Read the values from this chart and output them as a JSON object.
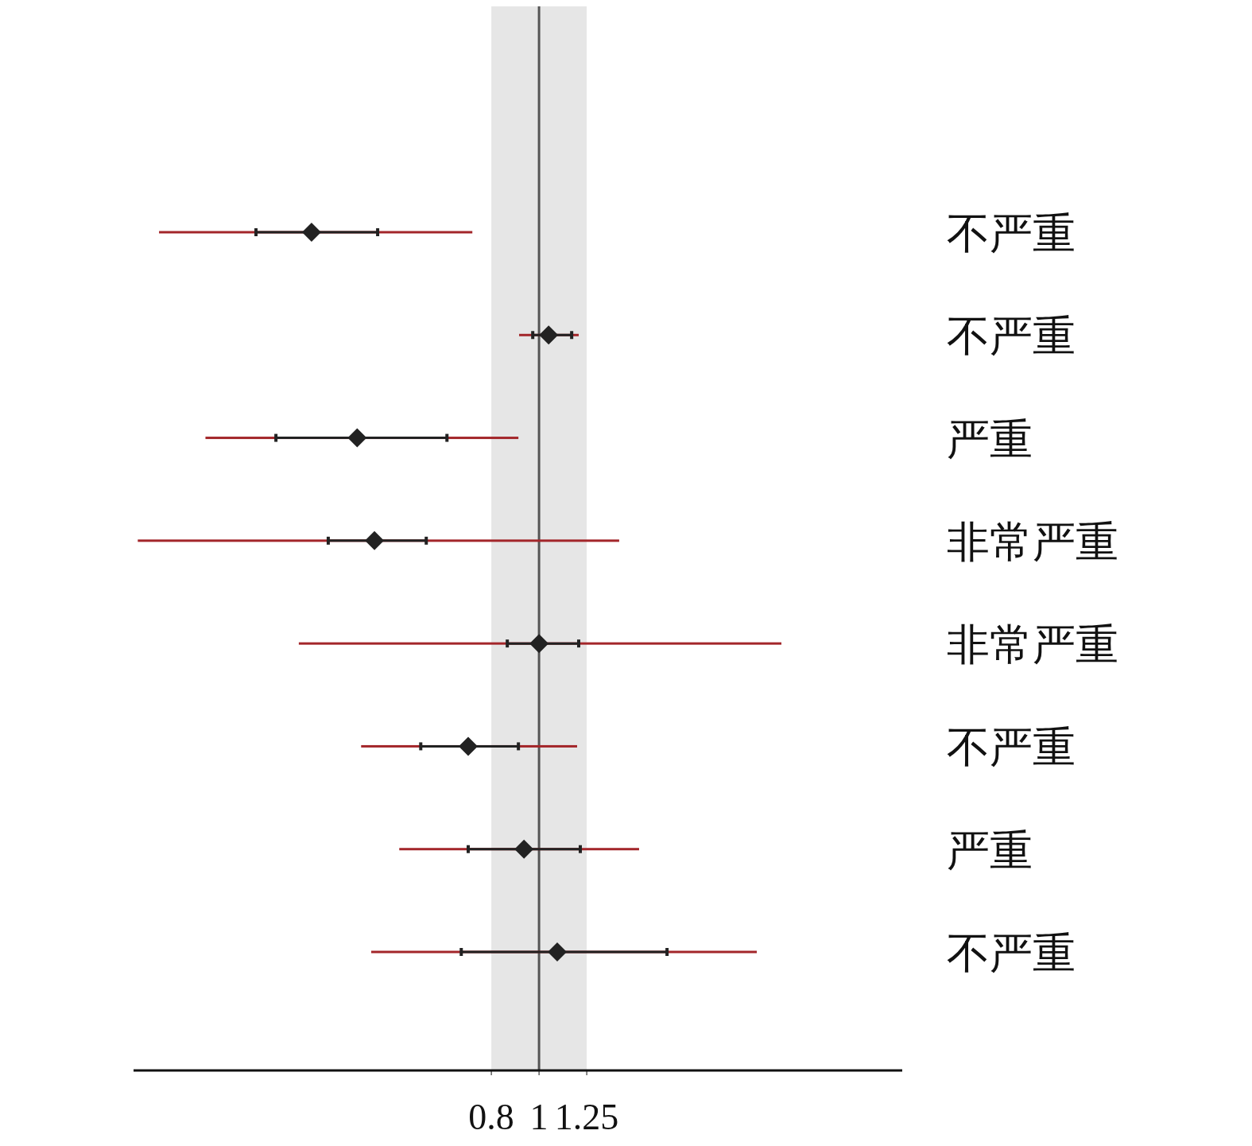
{
  "chart_data": {
    "type": "scatter",
    "orientation": "horizontal",
    "log": "x",
    "categories": [
      "不严重",
      "不严重",
      "严重",
      "非常严重",
      "非常严重",
      "不严重",
      "严重",
      "不严重"
    ],
    "series": [
      {
        "type": "bar",
        "color": "#a3262a",
        "base": [
          0.169,
          0.911,
          0.21,
          0.153,
          0.325,
          0.435,
          0.52,
          0.456
        ],
        "values": [
          0.563,
          0.293,
          0.698,
          1.302,
          2.783,
          0.76,
          1.077,
          2.314
        ]
      },
      {
        "color": "#222222",
        "marker": "diamond",
        "values": [
          0.345,
          1.046,
          0.427,
          0.463,
          1.0,
          0.718,
          0.932,
          1.089
        ],
        "errors": [
          [
            0.266,
            0.47
          ],
          [
            0.971,
            1.165
          ],
          [
            0.292,
            0.65
          ],
          [
            0.373,
            0.59
          ],
          [
            0.862,
            1.204
          ],
          [
            0.575,
            0.908
          ],
          [
            0.718,
            1.213
          ],
          [
            0.695,
            1.82
          ]
        ]
      }
    ],
    "xlim": [
      0.15,
      5.47
    ],
    "xticks": [
      0.8,
      1,
      1.25
    ],
    "ref_lines": [
      {
        "axis": "x",
        "value": 1,
        "color": "#555555"
      }
    ],
    "bands": [
      {
        "axis": "x",
        "from": 0.8,
        "to": 1.25,
        "color": "#e6e6e6"
      }
    ],
    "grid": false
  }
}
